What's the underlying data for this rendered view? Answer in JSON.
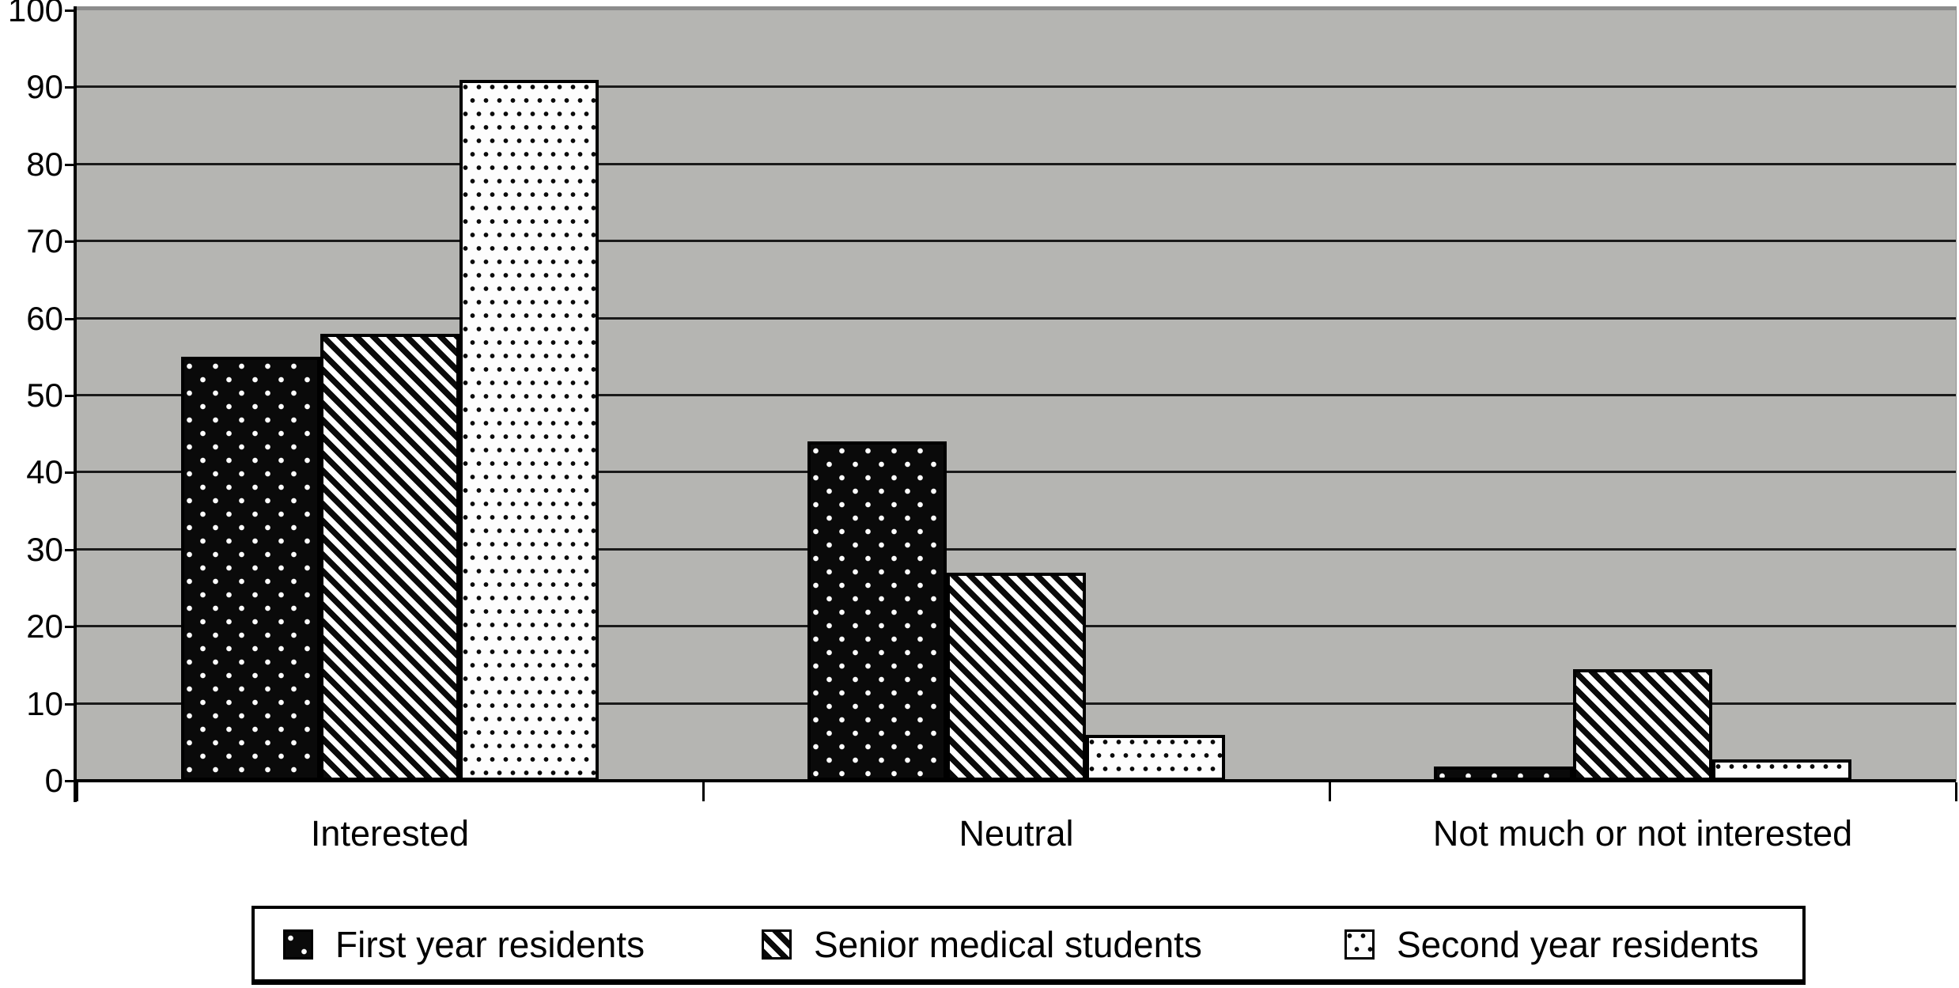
{
  "chart_data": {
    "type": "bar",
    "title": "",
    "xlabel": "",
    "ylabel": "",
    "categories": [
      "Interested",
      "Neutral",
      "Not much or not interested"
    ],
    "series": [
      {
        "name": "First year residents",
        "pattern": "black-dots",
        "values": [
          55,
          44,
          1.8
        ]
      },
      {
        "name": "Senior medical students",
        "pattern": "diagonal-stripes",
        "values": [
          58,
          27,
          14.5
        ]
      },
      {
        "name": "Second year residents",
        "pattern": "white-dots",
        "values": [
          91,
          6,
          2.8
        ]
      }
    ],
    "ylim": [
      0,
      100
    ],
    "yticks": [
      0,
      10,
      20,
      30,
      40,
      50,
      60,
      70,
      80,
      90,
      100
    ],
    "grid": true,
    "legend_position": "bottom"
  },
  "colors": {
    "plot_background": "#b5b5b2",
    "plot_border_gray": "#8c8c8c",
    "gridline": "#1a1a1a",
    "axis": "#000000",
    "bar_dark": "#0a0a0a",
    "bar_light": "#fdfdfd",
    "page_background": "#ffffff"
  }
}
